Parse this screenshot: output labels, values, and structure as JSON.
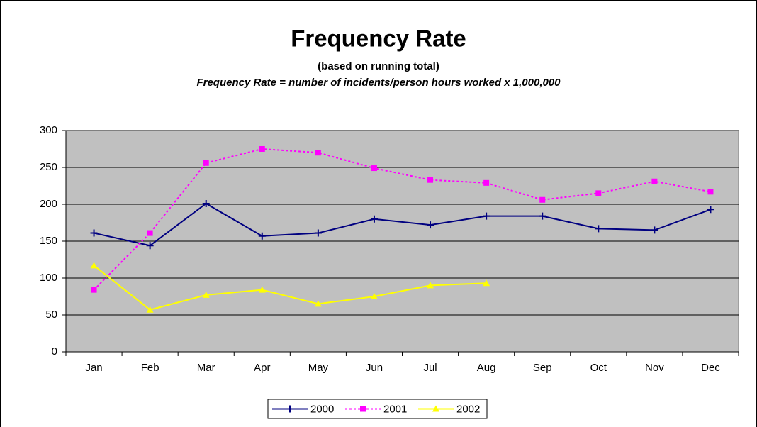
{
  "chart_data": {
    "type": "line",
    "title": "Frequency Rate",
    "subtitle": "(based on running total)",
    "annotation": "Frequency Rate = number of incidents/person hours worked x 1,000,000",
    "categories": [
      "Jan",
      "Feb",
      "Mar",
      "Apr",
      "May",
      "Jun",
      "Jul",
      "Aug",
      "Sep",
      "Oct",
      "Nov",
      "Dec"
    ],
    "series": [
      {
        "name": "2000",
        "color": "#000080",
        "marker": "plus",
        "dashed": false,
        "values": [
          161,
          144,
          201,
          157,
          161,
          180,
          172,
          184,
          184,
          167,
          165,
          193
        ]
      },
      {
        "name": "2001",
        "color": "#ff00ff",
        "marker": "square",
        "dashed": true,
        "values": [
          84,
          161,
          256,
          275,
          270,
          249,
          233,
          229,
          206,
          215,
          231,
          217
        ]
      },
      {
        "name": "2002",
        "color": "#ffff00",
        "marker": "triangle",
        "dashed": false,
        "values": [
          117,
          57,
          77,
          84,
          65,
          75,
          90,
          93,
          null,
          null,
          null,
          null
        ]
      }
    ],
    "ylim": [
      0,
      300
    ],
    "yticks": [
      0,
      50,
      100,
      150,
      200,
      250,
      300
    ],
    "grid": true,
    "legend": "bottom"
  }
}
